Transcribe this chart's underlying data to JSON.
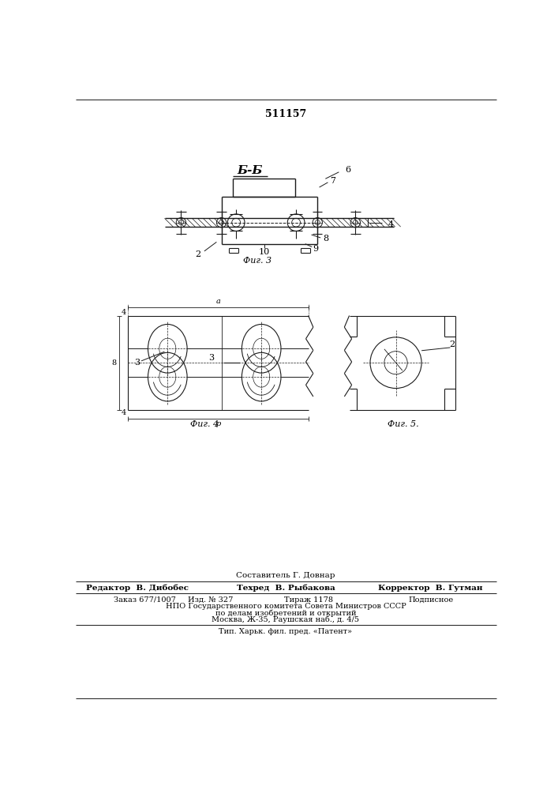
{
  "patent_number": "511157",
  "fig3_label": "Фиг. 3",
  "fig4_label": "Фиг. 4",
  "fig5_label": "Фиг. 5.",
  "section_label": "Б-Б",
  "footer_line1": "Составитель Г. Довнар",
  "footer_editor": "Редактор  В. Дибобес",
  "footer_tech": "Техред  В. Рыбакова",
  "footer_corrector": "Корректор  В. Гутман",
  "footer_order": "Заказ 677/1007",
  "footer_iss": "Изд. № 327",
  "footer_circ": "Тираж 1178",
  "footer_sub": "Подписное",
  "footer_npo": "НПО Государственного комитета Совета Министров СССР",
  "footer_npo2": "по делам изобретений и открытий",
  "footer_addr": "Москва, Ж-35, Раушская наб., д. 4/5",
  "footer_typ": "Тип. Харьк. фил. пред. «Патент»",
  "bg_color": "#ffffff",
  "line_color": "#1a1a1a"
}
